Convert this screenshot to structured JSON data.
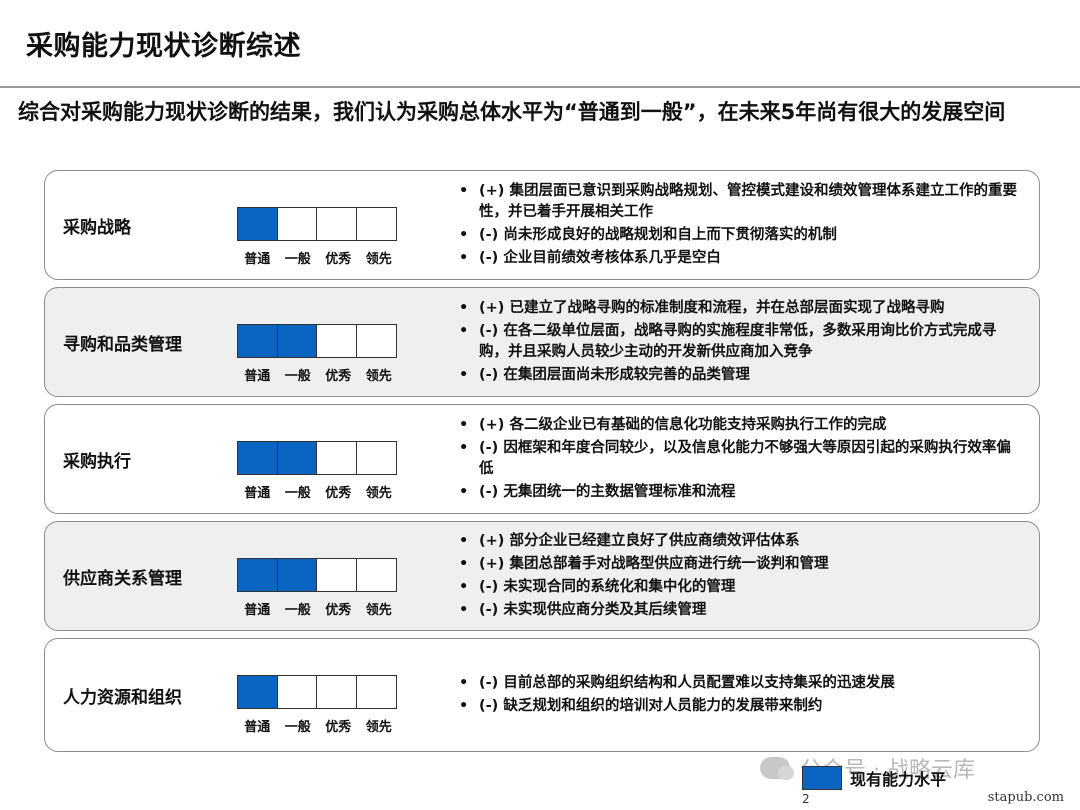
{
  "title": "采购能力现状诊断综述",
  "subtitle": "综合对采购能力现状诊断的结果，我们认为采购总体水平为“普通到一般”，在未来5年尚有很大的发展空间",
  "scale_labels": [
    "普通",
    "一般",
    "优秀",
    "领先"
  ],
  "colors": {
    "filled": "#0a64c2",
    "shaded_row": "#efefef"
  },
  "rows": [
    {
      "label": "采购战略",
      "level": 1,
      "bullets": [
        "(+) 集团层面已意识到采购战略规划、管控模式建设和绩效管理体系建立工作的重要性，并已着手开展相关工作",
        "(-)  尚未形成良好的战略规划和自上而下贯彻落实的机制",
        "(-)  企业目前绩效考核体系几乎是空白"
      ]
    },
    {
      "label": "寻购和品类管理",
      "level": 2,
      "bullets": [
        "(+) 已建立了战略寻购的标准制度和流程，并在总部层面实现了战略寻购",
        "(-) 在各二级单位层面，战略寻购的实施程度非常低，多数采用询比价方式完成寻购，并且采购人员较少主动的开发新供应商加入竞争",
        "(-) 在集团层面尚未形成较完善的品类管理"
      ]
    },
    {
      "label": "采购执行",
      "level": 2,
      "bullets": [
        "(+) 各二级企业已有基础的信息化功能支持采购执行工作的完成",
        "(-) 因框架和年度合同较少，以及信息化能力不够强大等原因引起的采购执行效率偏低",
        "(-) 无集团统一的主数据管理标准和流程"
      ]
    },
    {
      "label": "供应商关系管理",
      "level": 2,
      "bullets": [
        "(+) 部分企业已经建立良好了供应商绩效评估体系",
        "(+) 集团总部着手对战略型供应商进行统一谈判和管理",
        "(-) 未实现合同的系统化和集中化的管理",
        "(-) 未实现供应商分类及其后续管理"
      ]
    },
    {
      "label": "人力资源和组织",
      "level": 1,
      "bullets": [
        "(-) 目前总部的采购组织结构和人员配置难以支持集采的迅速发展",
        "(-) 缺乏规划和组织的培训对人员能力的发展带来制约"
      ]
    }
  ],
  "legend": {
    "label": "现有能力水平"
  },
  "watermark": "公众号 · 战略云库",
  "page_number": "2",
  "site": "stapub.com"
}
